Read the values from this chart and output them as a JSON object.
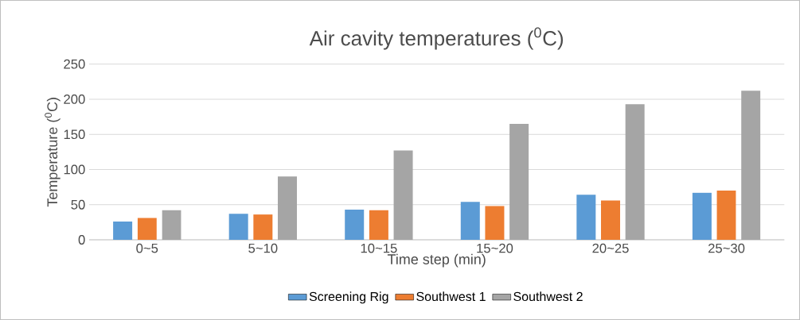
{
  "chart_data": {
    "type": "bar",
    "title": "Air cavity temperatures ($^{0}$C)",
    "xlabel": "Time step (min)",
    "ylabel": "Temperature ($^{0}$C)",
    "categories": [
      "0~5",
      "5~10",
      "10~15",
      "15~20",
      "20~25",
      "25~30"
    ],
    "series": [
      {
        "name": "Screening Rig",
        "color": "#5b9bd5",
        "values": [
          26,
          37,
          43,
          54,
          64,
          67
        ]
      },
      {
        "name": "Southwest 1",
        "color": "#ed7d31",
        "values": [
          31,
          36,
          42,
          48,
          56,
          70
        ]
      },
      {
        "name": "Southwest 2",
        "color": "#a5a5a5",
        "values": [
          42,
          90,
          127,
          165,
          193,
          212
        ]
      }
    ],
    "ylim": [
      0,
      250
    ],
    "yticks": [
      0,
      50,
      100,
      150,
      200,
      250
    ],
    "grid": "y",
    "legend": "bottom"
  }
}
